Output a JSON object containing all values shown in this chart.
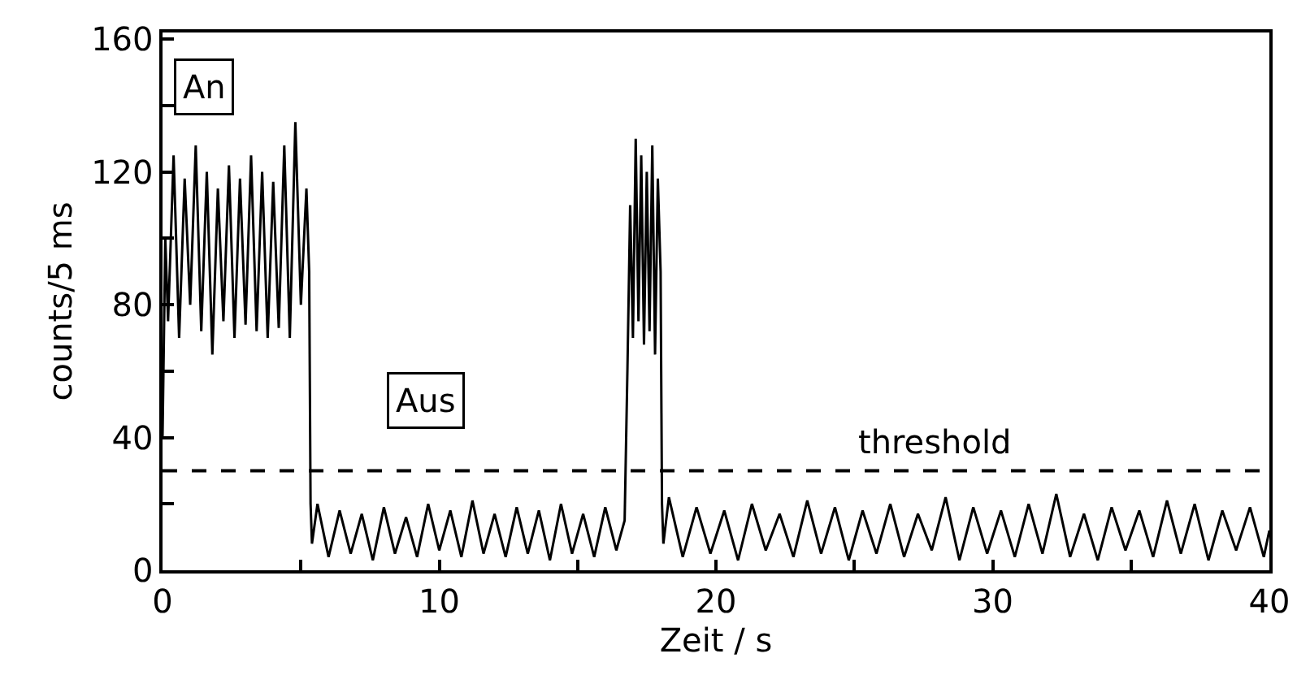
{
  "chart_data": {
    "type": "line",
    "xlabel": "Zeit / s",
    "ylabel": "counts/5 ms",
    "xlim": [
      0,
      40
    ],
    "ylim": [
      0,
      162
    ],
    "xticks": [
      0,
      {
        "value": 5,
        "label": null
      },
      10,
      {
        "value": 15,
        "label": null
      },
      20,
      {
        "value": 25,
        "label": null
      },
      30,
      {
        "value": 35,
        "label": null
      },
      40
    ],
    "yticks": [
      0,
      {
        "value": 20,
        "label": null
      },
      40,
      {
        "value": 60,
        "label": null
      },
      80,
      {
        "value": 100,
        "label": null
      },
      120,
      {
        "value": 140,
        "label": null
      },
      160
    ],
    "marker": "none",
    "line_style": "solid",
    "series": [
      {
        "color": "#000000",
        "x": [
          0,
          0.1,
          0.2,
          0.4,
          0.6,
          0.8,
          1.0,
          1.2,
          1.4,
          1.6,
          1.8,
          2.0,
          2.2,
          2.4,
          2.6,
          2.8,
          3.0,
          3.2,
          3.4,
          3.6,
          3.8,
          4.0,
          4.2,
          4.4,
          4.6,
          4.8,
          5.0,
          5.2,
          5.3,
          5.35,
          5.4,
          5.6,
          6.0,
          6.4,
          6.8,
          7.2,
          7.6,
          8.0,
          8.4,
          8.8,
          9.2,
          9.6,
          10.0,
          10.4,
          10.8,
          11.2,
          11.6,
          12.0,
          12.4,
          12.8,
          13.2,
          13.6,
          14.0,
          14.4,
          14.8,
          15.2,
          15.6,
          16.0,
          16.4,
          16.7,
          16.8,
          16.9,
          17.0,
          17.1,
          17.2,
          17.3,
          17.4,
          17.5,
          17.6,
          17.7,
          17.8,
          17.9,
          18.0,
          18.05,
          18.1,
          18.3,
          18.8,
          19.3,
          19.8,
          20.3,
          20.8,
          21.3,
          21.8,
          22.3,
          22.8,
          23.3,
          23.8,
          24.3,
          24.8,
          25.3,
          25.8,
          26.3,
          26.8,
          27.3,
          27.8,
          28.3,
          28.8,
          29.3,
          29.8,
          30.3,
          30.8,
          31.3,
          31.8,
          32.3,
          32.8,
          33.3,
          33.8,
          34.3,
          34.8,
          35.3,
          35.8,
          36.3,
          36.8,
          37.3,
          37.8,
          38.3,
          38.8,
          39.3,
          39.8,
          40
        ],
        "values": [
          40,
          100,
          75,
          125,
          70,
          118,
          80,
          128,
          72,
          120,
          65,
          115,
          75,
          122,
          70,
          118,
          74,
          125,
          72,
          120,
          70,
          117,
          73,
          128,
          70,
          135,
          80,
          115,
          90,
          20,
          8,
          20,
          4,
          18,
          5,
          17,
          3,
          19,
          5,
          16,
          4,
          20,
          6,
          18,
          4,
          21,
          5,
          17,
          4,
          19,
          5,
          18,
          3,
          20,
          5,
          17,
          4,
          19,
          6,
          15,
          60,
          110,
          70,
          130,
          75,
          125,
          68,
          120,
          72,
          128,
          65,
          118,
          90,
          20,
          8,
          22,
          4,
          19,
          5,
          18,
          3,
          20,
          6,
          17,
          4,
          21,
          5,
          19,
          3,
          18,
          5,
          20,
          4,
          17,
          6,
          22,
          3,
          19,
          5,
          18,
          4,
          20,
          5,
          23,
          4,
          17,
          3,
          19,
          6,
          18,
          4,
          21,
          5,
          20,
          3,
          18,
          6,
          19,
          4,
          12
        ]
      }
    ],
    "ref_lines": [
      {
        "axis": "y",
        "value": 30,
        "label": "threshold",
        "color": "#000000",
        "line_style": "dashed"
      }
    ],
    "annotations": [
      "An",
      "Aus"
    ]
  }
}
